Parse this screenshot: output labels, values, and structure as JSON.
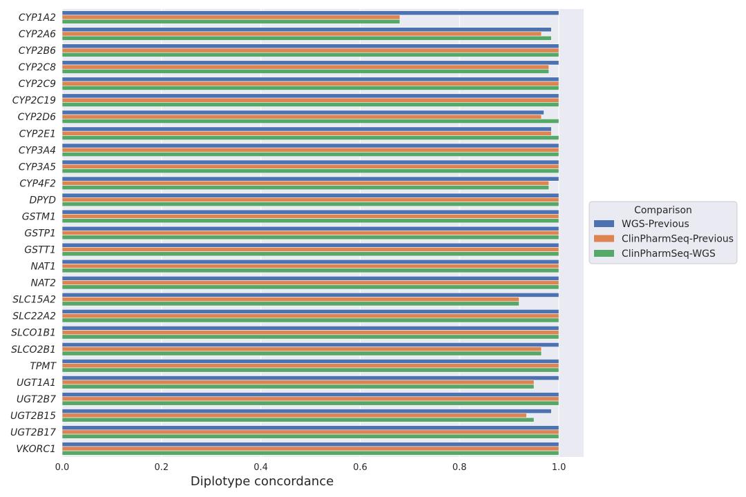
{
  "chart_data": {
    "type": "bar",
    "orientation": "horizontal",
    "categories": [
      "CYP1A2",
      "CYP2A6",
      "CYP2B6",
      "CYP2C8",
      "CYP2C9",
      "CYP2C19",
      "CYP2D6",
      "CYP2E1",
      "CYP3A4",
      "CYP3A5",
      "CYP4F2",
      "DPYD",
      "GSTM1",
      "GSTP1",
      "GSTT1",
      "NAT1",
      "NAT2",
      "SLC15A2",
      "SLC22A2",
      "SLCO1B1",
      "SLCO2B1",
      "TPMT",
      "UGT1A1",
      "UGT2B7",
      "UGT2B15",
      "UGT2B17",
      "VKORC1"
    ],
    "series": [
      {
        "name": "WGS-Previous",
        "color": "#4c72b0",
        "values": [
          1.0,
          0.985,
          1.0,
          1.0,
          1.0,
          1.0,
          0.97,
          0.985,
          1.0,
          1.0,
          1.0,
          1.0,
          1.0,
          1.0,
          1.0,
          1.0,
          1.0,
          1.0,
          1.0,
          1.0,
          1.0,
          1.0,
          1.0,
          1.0,
          0.985,
          1.0,
          1.0
        ]
      },
      {
        "name": "ClinPharmSeq-Previous",
        "color": "#dd8452",
        "values": [
          0.68,
          0.965,
          1.0,
          0.98,
          1.0,
          1.0,
          0.965,
          0.985,
          1.0,
          1.0,
          0.98,
          1.0,
          1.0,
          1.0,
          1.0,
          1.0,
          1.0,
          0.92,
          1.0,
          1.0,
          0.965,
          1.0,
          0.95,
          1.0,
          0.935,
          1.0,
          1.0
        ]
      },
      {
        "name": "ClinPharmSeq-WGS",
        "color": "#55a868",
        "values": [
          0.68,
          0.985,
          1.0,
          0.98,
          1.0,
          1.0,
          1.0,
          1.0,
          1.0,
          1.0,
          0.98,
          1.0,
          1.0,
          1.0,
          1.0,
          1.0,
          1.0,
          0.92,
          1.0,
          1.0,
          0.965,
          1.0,
          0.95,
          1.0,
          0.95,
          1.0,
          1.0
        ]
      }
    ],
    "xlabel": "Diplotype concordance",
    "ylabel": "",
    "xlim": [
      0.0,
      1.05
    ],
    "xticks": [
      0.0,
      0.2,
      0.4,
      0.6,
      0.8,
      1.0
    ],
    "xtick_labels": [
      "0.0",
      "0.2",
      "0.4",
      "0.6",
      "0.8",
      "1.0"
    ],
    "grid": true,
    "background": "#eaeaf2",
    "legend": {
      "title": "Comparison",
      "placement": "right"
    }
  }
}
